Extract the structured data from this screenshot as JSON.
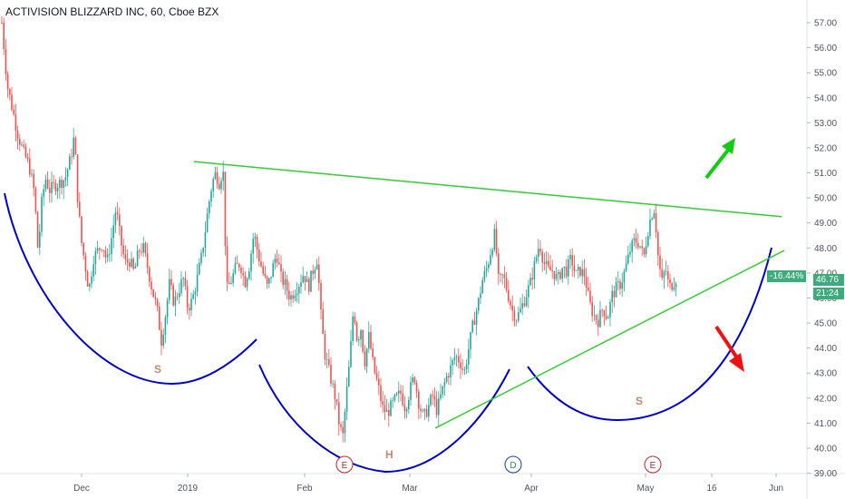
{
  "header": {
    "title": "ACTIVISION BLIZZARD INC, 60, Cboe BZX"
  },
  "price_axis": {
    "change_pct": "-16.44%",
    "last_price": "46.76",
    "countdown": "21:24",
    "badge_color": "#3dab7b"
  },
  "patterns": {
    "left_shoulder": "S",
    "head": "H",
    "right_shoulder": "S"
  },
  "events": [
    {
      "letter": "E",
      "color": "#b22833"
    },
    {
      "letter": "D",
      "color": "#2f8f47"
    },
    {
      "letter": "E",
      "color": "#b22833"
    }
  ],
  "colors": {
    "up": "#26a69a",
    "down": "#ef5350",
    "neckline": "#33cc33",
    "curve": "#0000cc",
    "arrow_up": "#11cc11",
    "arrow_down": "#ee1111"
  },
  "chart_data": {
    "type": "candlestick",
    "title": "ACTIVISION BLIZZARD INC, 60, Cboe BZX",
    "ylim": [
      38.8,
      57.4
    ],
    "y_ticks": [
      "39.00",
      "40.00",
      "41.00",
      "42.00",
      "43.00",
      "44.00",
      "45.00",
      "46.00",
      "47.00",
      "48.00",
      "49.00",
      "50.00",
      "51.00",
      "52.00",
      "53.00",
      "54.00",
      "55.00",
      "56.00",
      "57.00"
    ],
    "x_ticks": [
      "Dec",
      "2019",
      "Feb",
      "Mar",
      "Apr",
      "May",
      "16",
      "Jun"
    ],
    "ohlc_path": [
      {
        "x": 2,
        "y": 57.0
      },
      {
        "x": 8,
        "y": 54.5
      },
      {
        "x": 14,
        "y": 53.5
      },
      {
        "x": 20,
        "y": 52.5
      },
      {
        "x": 26,
        "y": 51.8
      },
      {
        "x": 32,
        "y": 51.3
      },
      {
        "x": 38,
        "y": 50.2
      },
      {
        "x": 42,
        "y": 47.8
      },
      {
        "x": 46,
        "y": 49.8
      },
      {
        "x": 50,
        "y": 50.8
      },
      {
        "x": 55,
        "y": 50.3
      },
      {
        "x": 60,
        "y": 50.5
      },
      {
        "x": 66,
        "y": 50.6
      },
      {
        "x": 72,
        "y": 50.8
      },
      {
        "x": 78,
        "y": 51.6
      },
      {
        "x": 82,
        "y": 52.5
      },
      {
        "x": 86,
        "y": 49.8
      },
      {
        "x": 90,
        "y": 48.2
      },
      {
        "x": 94,
        "y": 47.3
      },
      {
        "x": 98,
        "y": 46.3
      },
      {
        "x": 103,
        "y": 47.6
      },
      {
        "x": 108,
        "y": 47.9
      },
      {
        "x": 113,
        "y": 48.2
      },
      {
        "x": 118,
        "y": 47.4
      },
      {
        "x": 123,
        "y": 48.4
      },
      {
        "x": 128,
        "y": 49.6
      },
      {
        "x": 133,
        "y": 48.3
      },
      {
        "x": 138,
        "y": 47.4
      },
      {
        "x": 143,
        "y": 47.5
      },
      {
        "x": 148,
        "y": 47.0
      },
      {
        "x": 153,
        "y": 47.9
      },
      {
        "x": 158,
        "y": 48.0
      },
      {
        "x": 163,
        "y": 47.2
      },
      {
        "x": 168,
        "y": 46.3
      },
      {
        "x": 173,
        "y": 45.6
      },
      {
        "x": 178,
        "y": 44.3
      },
      {
        "x": 182,
        "y": 45.2
      },
      {
        "x": 187,
        "y": 46.6
      },
      {
        "x": 192,
        "y": 45.8
      },
      {
        "x": 197,
        "y": 46.3
      },
      {
        "x": 202,
        "y": 46.8
      },
      {
        "x": 207,
        "y": 45.6
      },
      {
        "x": 212,
        "y": 45.9
      },
      {
        "x": 217,
        "y": 46.7
      },
      {
        "x": 222,
        "y": 47.6
      },
      {
        "x": 226,
        "y": 48.6
      },
      {
        "x": 230,
        "y": 49.7
      },
      {
        "x": 234,
        "y": 50.6
      },
      {
        "x": 238,
        "y": 51.0
      },
      {
        "x": 242,
        "y": 50.6
      },
      {
        "x": 246,
        "y": 51.2
      },
      {
        "x": 250,
        "y": 46.3
      },
      {
        "x": 255,
        "y": 46.7
      },
      {
        "x": 260,
        "y": 47.2
      },
      {
        "x": 265,
        "y": 47.4
      },
      {
        "x": 270,
        "y": 46.6
      },
      {
        "x": 275,
        "y": 47.3
      },
      {
        "x": 280,
        "y": 48.6
      },
      {
        "x": 285,
        "y": 47.7
      },
      {
        "x": 290,
        "y": 47.0
      },
      {
        "x": 295,
        "y": 46.4
      },
      {
        "x": 300,
        "y": 47.1
      },
      {
        "x": 305,
        "y": 47.8
      },
      {
        "x": 310,
        "y": 46.8
      },
      {
        "x": 315,
        "y": 46.5
      },
      {
        "x": 320,
        "y": 46.0
      },
      {
        "x": 325,
        "y": 46.3
      },
      {
        "x": 330,
        "y": 46.6
      },
      {
        "x": 335,
        "y": 47.0
      },
      {
        "x": 340,
        "y": 46.4
      },
      {
        "x": 345,
        "y": 47.1
      },
      {
        "x": 350,
        "y": 47.6
      },
      {
        "x": 354,
        "y": 45.3
      },
      {
        "x": 358,
        "y": 43.8
      },
      {
        "x": 362,
        "y": 43.2
      },
      {
        "x": 366,
        "y": 42.6
      },
      {
        "x": 370,
        "y": 42.0
      },
      {
        "x": 374,
        "y": 41.0
      },
      {
        "x": 378,
        "y": 40.4
      },
      {
        "x": 382,
        "y": 42.1
      },
      {
        "x": 386,
        "y": 43.6
      },
      {
        "x": 390,
        "y": 45.7
      },
      {
        "x": 394,
        "y": 44.3
      },
      {
        "x": 398,
        "y": 44.8
      },
      {
        "x": 402,
        "y": 43.4
      },
      {
        "x": 407,
        "y": 44.5
      },
      {
        "x": 412,
        "y": 43.2
      },
      {
        "x": 417,
        "y": 42.5
      },
      {
        "x": 422,
        "y": 41.6
      },
      {
        "x": 427,
        "y": 41.4
      },
      {
        "x": 432,
        "y": 41.7
      },
      {
        "x": 437,
        "y": 42.0
      },
      {
        "x": 442,
        "y": 42.2
      },
      {
        "x": 447,
        "y": 41.6
      },
      {
        "x": 452,
        "y": 42.3
      },
      {
        "x": 457,
        "y": 42.9
      },
      {
        "x": 462,
        "y": 41.8
      },
      {
        "x": 467,
        "y": 41.2
      },
      {
        "x": 472,
        "y": 41.6
      },
      {
        "x": 477,
        "y": 42.1
      },
      {
        "x": 482,
        "y": 41.5
      },
      {
        "x": 487,
        "y": 42.2
      },
      {
        "x": 492,
        "y": 42.8
      },
      {
        "x": 497,
        "y": 43.2
      },
      {
        "x": 502,
        "y": 43.7
      },
      {
        "x": 507,
        "y": 43.5
      },
      {
        "x": 512,
        "y": 43.0
      },
      {
        "x": 517,
        "y": 44.0
      },
      {
        "x": 522,
        "y": 45.0
      },
      {
        "x": 527,
        "y": 45.7
      },
      {
        "x": 532,
        "y": 46.7
      },
      {
        "x": 537,
        "y": 47.2
      },
      {
        "x": 542,
        "y": 48.0
      },
      {
        "x": 546,
        "y": 48.6
      },
      {
        "x": 550,
        "y": 46.6
      },
      {
        "x": 555,
        "y": 46.9
      },
      {
        "x": 560,
        "y": 46.2
      },
      {
        "x": 565,
        "y": 45.5
      },
      {
        "x": 570,
        "y": 45.2
      },
      {
        "x": 575,
        "y": 45.6
      },
      {
        "x": 580,
        "y": 46.1
      },
      {
        "x": 585,
        "y": 46.6
      },
      {
        "x": 590,
        "y": 47.4
      },
      {
        "x": 595,
        "y": 48.2
      },
      {
        "x": 600,
        "y": 47.4
      },
      {
        "x": 605,
        "y": 47.1
      },
      {
        "x": 610,
        "y": 47.1
      },
      {
        "x": 615,
        "y": 46.7
      },
      {
        "x": 620,
        "y": 47.2
      },
      {
        "x": 625,
        "y": 47.1
      },
      {
        "x": 630,
        "y": 47.6
      },
      {
        "x": 635,
        "y": 46.9
      },
      {
        "x": 640,
        "y": 47.1
      },
      {
        "x": 645,
        "y": 46.9
      },
      {
        "x": 650,
        "y": 45.8
      },
      {
        "x": 655,
        "y": 45.3
      },
      {
        "x": 660,
        "y": 45.1
      },
      {
        "x": 665,
        "y": 45.6
      },
      {
        "x": 670,
        "y": 45.2
      },
      {
        "x": 675,
        "y": 46.1
      },
      {
        "x": 680,
        "y": 46.4
      },
      {
        "x": 685,
        "y": 46.6
      },
      {
        "x": 690,
        "y": 47.2
      },
      {
        "x": 695,
        "y": 47.9
      },
      {
        "x": 700,
        "y": 48.3
      },
      {
        "x": 705,
        "y": 48.2
      },
      {
        "x": 710,
        "y": 47.6
      },
      {
        "x": 714,
        "y": 48.6
      },
      {
        "x": 718,
        "y": 49.3
      },
      {
        "x": 722,
        "y": 49.6
      },
      {
        "x": 726,
        "y": 47.6
      },
      {
        "x": 730,
        "y": 46.6
      },
      {
        "x": 734,
        "y": 47.2
      },
      {
        "x": 738,
        "y": 46.4
      },
      {
        "x": 742,
        "y": 46.6
      },
      {
        "x": 746,
        "y": 46.8
      }
    ],
    "neckline_upper": [
      {
        "x": 214,
        "y": 51.45
      },
      {
        "x": 862,
        "y": 49.25
      }
    ],
    "neckline_lower": [
      {
        "x": 480,
        "y": 40.8
      },
      {
        "x": 865,
        "y": 47.9
      }
    ]
  }
}
